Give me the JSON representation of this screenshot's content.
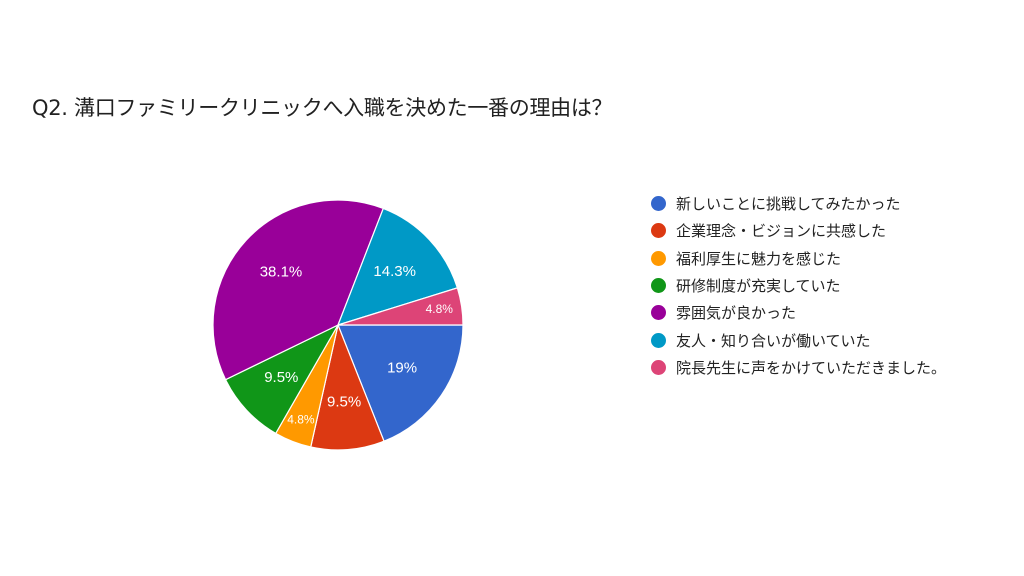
{
  "title": "Q2. 溝口ファミリークリニックへ入職を決めた一番の理由は？",
  "chart_data": {
    "type": "pie",
    "title": "Q2. 溝口ファミリークリニックへ入職を決めた一番の理由は？",
    "categories": [
      "新しいことに挑戦してみたかった",
      "企業理念・ビジョンに共感した",
      "福利厚生に魅力を感じた",
      "研修制度が充実していた",
      "雰囲気が良かった",
      "友人・知り合いが働いていた",
      "院長先生に声をかけていただきました。"
    ],
    "values": [
      19,
      9.5,
      4.8,
      9.5,
      38.1,
      14.3,
      4.8
    ],
    "labels": [
      "19%",
      "9.5%",
      "4.8%",
      "9.5%",
      "38.1%",
      "14.3%",
      "4.8%"
    ],
    "colors": [
      "#3366cc",
      "#dc3912",
      "#ff9900",
      "#109618",
      "#990099",
      "#0099c6",
      "#dd4477"
    ],
    "legend_position": "right",
    "start_angle": "3 o'clock, clockwise"
  },
  "legend": [
    {
      "label": "新しいことに挑戦してみたかった",
      "color": "#3366cc"
    },
    {
      "label": "企業理念・ビジョンに共感した",
      "color": "#dc3912"
    },
    {
      "label": "福利厚生に魅力を感じた",
      "color": "#ff9900"
    },
    {
      "label": "研修制度が充実していた",
      "color": "#109618"
    },
    {
      "label": "雰囲気が良かった",
      "color": "#990099"
    },
    {
      "label": "友人・知り合いが働いていた",
      "color": "#0099c6"
    },
    {
      "label": "院長先生に声をかけていただきました。",
      "color": "#dd4477"
    }
  ]
}
